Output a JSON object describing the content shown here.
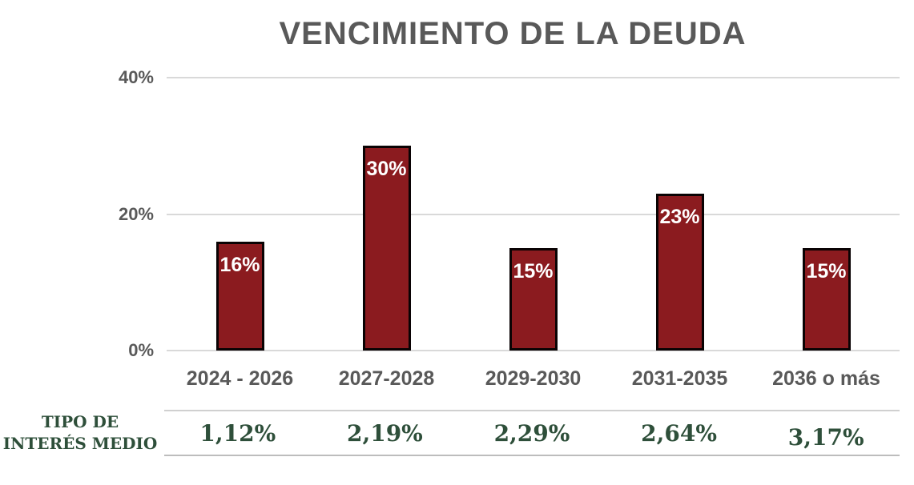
{
  "chart_data": {
    "type": "bar",
    "title": "VENCIMIENTO DE LA DEUDA",
    "categories": [
      "2024 - 2026",
      "2027-2028",
      "2029-2030",
      "2031-2035",
      "2036 o más"
    ],
    "values": [
      16,
      30,
      15,
      23,
      15
    ],
    "bar_labels": [
      "16%",
      "30%",
      "15%",
      "23%",
      "15%"
    ],
    "xlabel": "",
    "ylabel": "",
    "ylim": [
      0,
      40
    ],
    "yticks": [
      {
        "value": 0,
        "label": "0%"
      },
      {
        "value": 20,
        "label": "20%"
      },
      {
        "value": 40,
        "label": "40%"
      }
    ],
    "grid": true,
    "legend": false,
    "bar_color": "#8B1B1F",
    "bar_border_color": "#0A0304",
    "bar_label_color": "#FFFFFF"
  },
  "interest_row": {
    "label": "TIPO DE INTERÉS MEDIO",
    "label_lines": [
      "TIPO DE",
      "INTERÉS MEDIO"
    ],
    "values": [
      "1,12%",
      "2,19%",
      "2,29%",
      "2,64%",
      "3,17%"
    ],
    "text_color": "#2E4F3A"
  },
  "colors": {
    "title_text": "#595959",
    "axis_text": "#595959",
    "gridline": "#D9D9D9",
    "table_line_top": "#D0D0D0",
    "table_line_bottom": "#BDBDBD",
    "background": "#FFFFFF"
  }
}
